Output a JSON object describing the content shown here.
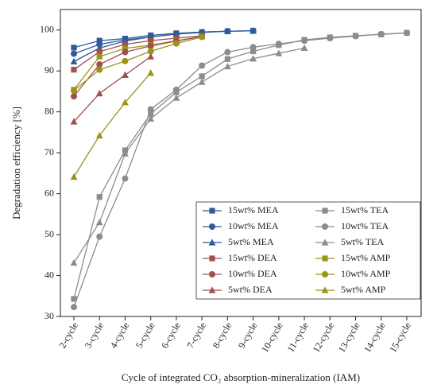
{
  "chart_data": {
    "type": "line",
    "xlabel": "Cycle of integrated CO₂ absorption-mineralization (IAM)",
    "ylabel": "Degradation efficiency [%]",
    "categories": [
      "2-cycle",
      "3-cycle",
      "4-cycle",
      "5-cycle",
      "6-cycle",
      "7-cycle",
      "8-cycle",
      "9-cycle",
      "10-cycle",
      "11-cycle",
      "12-cycle",
      "13-cycle",
      "14-cycle",
      "15-cycle"
    ],
    "ylim": [
      30,
      105
    ],
    "yticks": [
      30,
      40,
      50,
      60,
      70,
      80,
      90,
      100
    ],
    "series": [
      {
        "name": "15wt% MEA",
        "color": "#2f5b9e",
        "marker": "square",
        "values": [
          95.7,
          97.4,
          97.9,
          98.7,
          99.2,
          99.5,
          99.7,
          99.8,
          null,
          null,
          null,
          null,
          null,
          null
        ]
      },
      {
        "name": "15wt% TEA",
        "color": "#8c8c8c",
        "marker": "square",
        "values": [
          34.3,
          59.2,
          70.6,
          79.5,
          84.8,
          88.7,
          92.9,
          94.8,
          96.3,
          97.6,
          98.2,
          98.6,
          98.9,
          99.3
        ]
      },
      {
        "name": "10wt% MEA",
        "color": "#2f5b9e",
        "marker": "circle",
        "values": [
          94.2,
          96.5,
          97.6,
          98.3,
          99.0,
          99.4,
          99.7,
          99.8,
          null,
          null,
          null,
          null,
          null,
          null
        ]
      },
      {
        "name": "10wt% TEA",
        "color": "#8c8c8c",
        "marker": "circle",
        "values": [
          32.3,
          49.5,
          63.7,
          80.6,
          85.4,
          91.3,
          94.6,
          95.8,
          96.6,
          97.4,
          98.0,
          98.5,
          99.0,
          99.3
        ]
      },
      {
        "name": "5wt% MEA",
        "color": "#2f5b9e",
        "marker": "triangle",
        "values": [
          92.3,
          95.6,
          97.3,
          98.3,
          99.0,
          99.5,
          99.7,
          99.8,
          null,
          null,
          null,
          null,
          null,
          null
        ]
      },
      {
        "name": "5wt% TEA",
        "color": "#8c8c8c",
        "marker": "triangle",
        "values": [
          43.1,
          53.0,
          69.8,
          78.3,
          83.4,
          87.3,
          91.1,
          93.0,
          94.3,
          95.6,
          null,
          null,
          null,
          null
        ]
      },
      {
        "name": "15wt% DEA",
        "color": "#a0504d",
        "marker": "square",
        "values": [
          90.3,
          94.7,
          96.5,
          97.4,
          98.0,
          98.6,
          null,
          null,
          null,
          null,
          null,
          null,
          null,
          null
        ]
      },
      {
        "name": "15wt% AMP",
        "color": "#9a9418",
        "marker": "square",
        "values": [
          85.4,
          93.5,
          95.5,
          96.3,
          97.4,
          98.4,
          null,
          null,
          null,
          null,
          null,
          null,
          null,
          null
        ]
      },
      {
        "name": "10wt% DEA",
        "color": "#a0504d",
        "marker": "circle",
        "values": [
          83.8,
          91.6,
          94.6,
          96.1,
          97.3,
          98.4,
          null,
          null,
          null,
          null,
          null,
          null,
          null,
          null
        ]
      },
      {
        "name": "10wt% AMP",
        "color": "#9a9418",
        "marker": "circle",
        "values": [
          85.2,
          90.3,
          92.4,
          94.8,
          96.7,
          98.3,
          null,
          null,
          null,
          null,
          null,
          null,
          null,
          null
        ]
      },
      {
        "name": "5wt% DEA",
        "color": "#a0504d",
        "marker": "triangle",
        "values": [
          77.6,
          84.5,
          89.0,
          93.5,
          null,
          null,
          null,
          null,
          null,
          null,
          null,
          null,
          null,
          null
        ]
      },
      {
        "name": "5wt% AMP",
        "color": "#9a9418",
        "marker": "triangle",
        "values": [
          64.1,
          74.2,
          82.3,
          89.5,
          null,
          null,
          null,
          null,
          null,
          null,
          null,
          null,
          null,
          null
        ]
      }
    ]
  }
}
